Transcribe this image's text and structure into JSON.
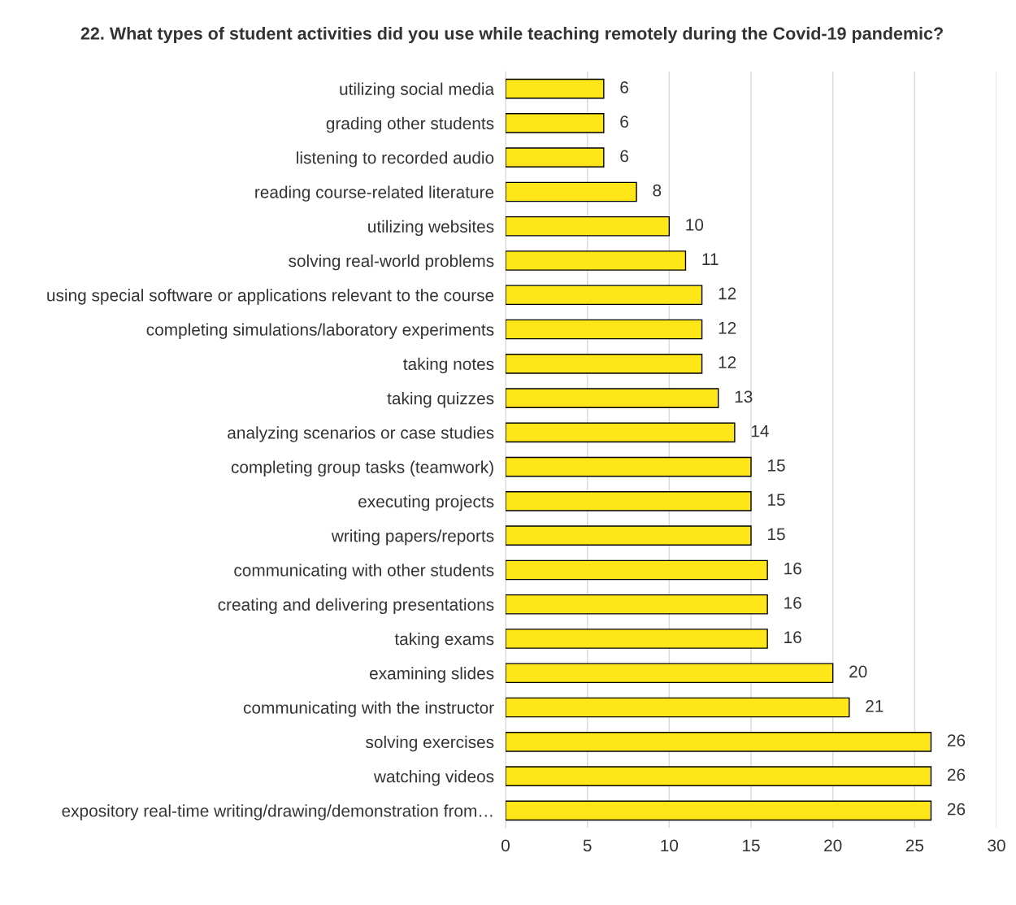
{
  "chart_data": {
    "type": "bar",
    "orientation": "horizontal",
    "title": "22. What types of student activities did you use while teaching remotely during the Covid-19 pandemic?",
    "categories": [
      "utilizing social media",
      "grading other students",
      "listening to recorded audio",
      "reading course-related literature",
      "utilizing websites",
      "solving real-world problems",
      "using special software or applications relevant to the course",
      "completing simulations/laboratory experiments",
      "taking notes",
      "taking quizzes",
      "analyzing scenarios or case studies",
      "completing group tasks (teamwork)",
      "executing projects",
      "writing papers/reports",
      "communicating with other students",
      "creating and delivering presentations",
      "taking exams",
      "examining slides",
      "communicating with the instructor",
      "solving exercises",
      "watching videos",
      "expository real-time writing/drawing/demonstration from…"
    ],
    "values": [
      6,
      6,
      6,
      8,
      10,
      11,
      12,
      12,
      12,
      13,
      14,
      15,
      15,
      15,
      16,
      16,
      16,
      20,
      21,
      26,
      26,
      26
    ],
    "color": "#ffe619",
    "xlim": [
      0,
      30
    ],
    "xticks": [
      0,
      5,
      10,
      15,
      20,
      25,
      30
    ],
    "grid": "x",
    "data_labels": true,
    "legend": false
  }
}
